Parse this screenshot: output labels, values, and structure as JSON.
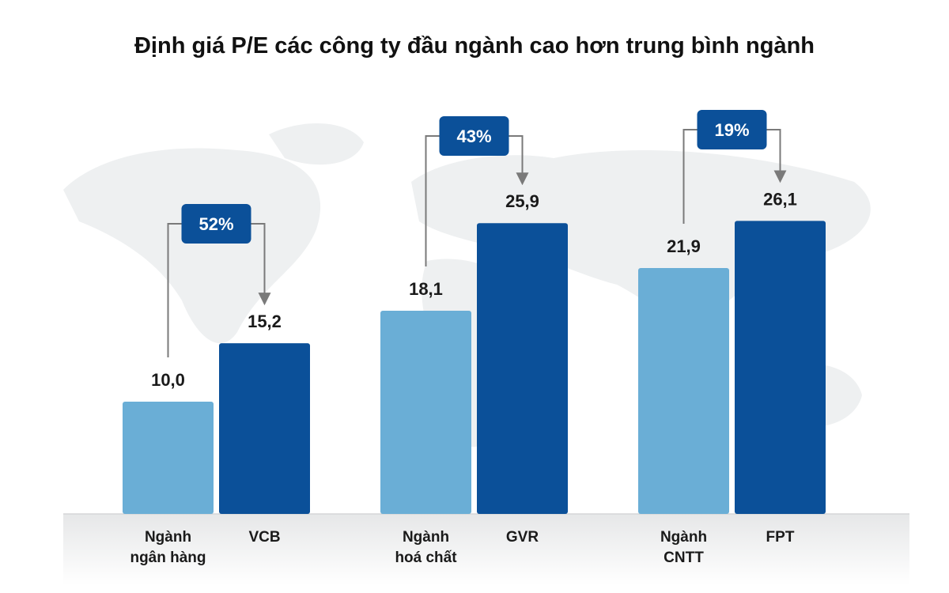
{
  "chart_data": {
    "type": "bar",
    "title": "Định giá P/E các công ty đầu ngành cao hơn trung bình ngành",
    "groups": [
      {
        "categories": [
          [
            "Ngành",
            "ngân hàng"
          ],
          [
            "VCB"
          ]
        ],
        "values": [
          10.0,
          15.2
        ],
        "labels": [
          "10,0",
          "15,2"
        ],
        "premium": "52%"
      },
      {
        "categories": [
          [
            "Ngành",
            "hoá chất"
          ],
          [
            "GVR"
          ]
        ],
        "values": [
          18.1,
          25.9
        ],
        "labels": [
          "18,1",
          "25,9"
        ],
        "premium": "43%"
      },
      {
        "categories": [
          [
            "Ngành",
            "CNTT"
          ],
          [
            "FPT"
          ]
        ],
        "values": [
          21.9,
          26.1
        ],
        "labels": [
          "21,9",
          "26,1"
        ],
        "premium": "19%"
      }
    ],
    "ylim": [
      0,
      30
    ],
    "grid": false,
    "colors": {
      "industry": "#6aaed6",
      "company": "#0b5099",
      "badge": "#0b5099",
      "connector": "#7a7a7a",
      "map": "#eef0f1"
    }
  }
}
